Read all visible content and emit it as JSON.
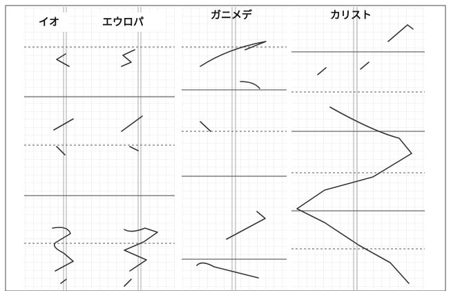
{
  "panels": [
    {
      "labels": [
        "イオ",
        "エウロパ"
      ]
    },
    {
      "labels": [
        "ガニメデ"
      ]
    },
    {
      "labels": [
        "カリスト"
      ]
    }
  ]
}
